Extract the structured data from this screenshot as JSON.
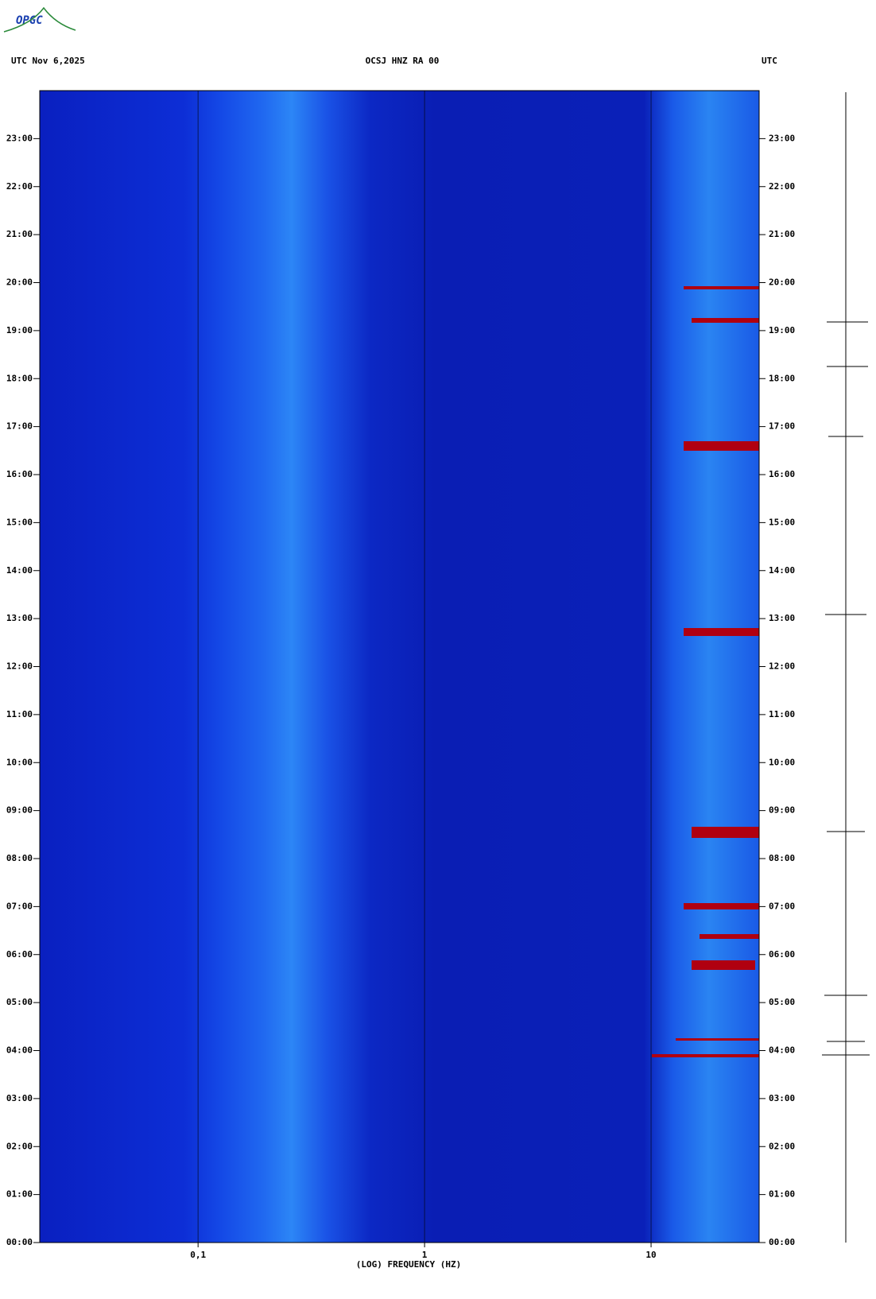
{
  "logo": "OPGC",
  "chart_data": {
    "type": "spectrogram",
    "title": "OCSJ HNZ RA 00",
    "left_header": "UTC  Nov 6,2025",
    "right_header": "UTC",
    "x_label": "(LOG) FREQUENCY (HZ)",
    "x_scale": "log",
    "xlim": [
      0.02,
      30
    ],
    "xticks": [
      {
        "value": 0.1,
        "label": "0,1"
      },
      1,
      10
    ],
    "ylim": [
      0,
      24
    ],
    "yticks": [
      {
        "value": 0,
        "label": "00:00"
      },
      {
        "value": 1,
        "label": "01:00"
      },
      {
        "value": 2,
        "label": "02:00"
      },
      {
        "value": 3,
        "label": "03:00"
      },
      {
        "value": 4,
        "label": "04:00"
      },
      {
        "value": 5,
        "label": "05:00"
      },
      {
        "value": 6,
        "label": "06:00"
      },
      {
        "value": 7,
        "label": "07:00"
      },
      {
        "value": 8,
        "label": "08:00"
      },
      {
        "value": 9,
        "label": "09:00"
      },
      {
        "value": 10,
        "label": "10:00"
      },
      {
        "value": 11,
        "label": "11:00"
      },
      {
        "value": 12,
        "label": "12:00"
      },
      {
        "value": 13,
        "label": "13:00"
      },
      {
        "value": 14,
        "label": "14:00"
      },
      {
        "value": 15,
        "label": "15:00"
      },
      {
        "value": 16,
        "label": "16:00"
      },
      {
        "value": 17,
        "label": "17:00"
      },
      {
        "value": 18,
        "label": "18:00"
      },
      {
        "value": 19,
        "label": "19:00"
      },
      {
        "value": 20,
        "label": "20:00"
      },
      {
        "value": 21,
        "label": "21:00"
      },
      {
        "value": 22,
        "label": "22:00"
      },
      {
        "value": 23,
        "label": "23:00"
      }
    ]
  }
}
